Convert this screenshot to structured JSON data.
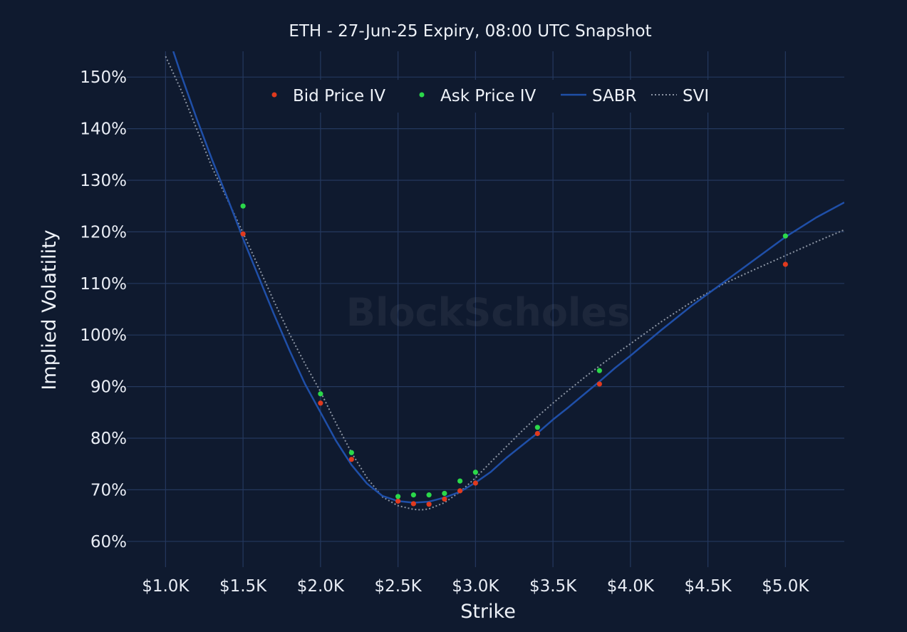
{
  "chart_data": {
    "type": "scatter",
    "title": "ETH - 27-Jun-25 Expiry, 08:00 UTC Snapshot",
    "xlabel": "Strike",
    "ylabel": "Implied Volatility",
    "watermark": "BlockScholes",
    "xlim": [
      750,
      5380
    ],
    "ylim": [
      55,
      155
    ],
    "xticks": [
      1000,
      1500,
      2000,
      2500,
      3000,
      3500,
      4000,
      4500,
      5000
    ],
    "xtick_labels": [
      "$1.0K",
      "$1.5K",
      "$2.0K",
      "$2.5K",
      "$3.0K",
      "$3.5K",
      "$4.0K",
      "$4.5K",
      "$5.0K"
    ],
    "yticks": [
      60,
      70,
      80,
      90,
      100,
      110,
      120,
      130,
      140,
      150
    ],
    "ytick_labels": [
      "60%",
      "70%",
      "80%",
      "90%",
      "100%",
      "110%",
      "120%",
      "130%",
      "140%",
      "150%"
    ],
    "grid": true,
    "legend_position": "top-center",
    "series": [
      {
        "name": "Bid Price IV",
        "kind": "markers",
        "color": "#e03a1e",
        "x": [
          1500,
          2000,
          2200,
          2500,
          2600,
          2700,
          2800,
          2900,
          3000,
          3400,
          3800,
          5000
        ],
        "y": [
          119.6,
          86.8,
          75.9,
          67.8,
          67.3,
          67.2,
          68.2,
          69.8,
          71.3,
          80.9,
          90.5,
          113.7
        ]
      },
      {
        "name": "Ask Price IV",
        "kind": "markers",
        "color": "#2bd84a",
        "x": [
          1500,
          2000,
          2200,
          2500,
          2600,
          2700,
          2800,
          2900,
          3000,
          3400,
          3800,
          5000
        ],
        "y": [
          125.0,
          88.6,
          77.2,
          68.7,
          69.0,
          69.0,
          69.3,
          71.7,
          73.4,
          82.1,
          93.1,
          119.2
        ]
      },
      {
        "name": "SABR",
        "kind": "line",
        "color": "#1f4fa8",
        "x": [
          1050,
          1100,
          1200,
          1300,
          1400,
          1500,
          1600,
          1700,
          1800,
          1900,
          2000,
          2100,
          2200,
          2300,
          2400,
          2500,
          2600,
          2700,
          2800,
          2900,
          3000,
          3100,
          3200,
          3300,
          3400,
          3500,
          3600,
          3700,
          3800,
          3900,
          4000,
          4200,
          4400,
          4600,
          4800,
          5000,
          5200,
          5380
        ],
        "y": [
          155,
          150.5,
          142.0,
          134.0,
          126.5,
          118.7,
          111.3,
          104.0,
          97.0,
          90.5,
          85.0,
          79.5,
          74.8,
          71.2,
          68.8,
          67.8,
          67.5,
          67.7,
          68.5,
          69.6,
          71.4,
          73.5,
          76.2,
          78.6,
          81.0,
          83.6,
          86.0,
          88.5,
          91.0,
          93.6,
          96.0,
          101.0,
          105.8,
          110.2,
          114.6,
          119.0,
          122.8,
          125.7
        ]
      },
      {
        "name": "SVI",
        "kind": "line",
        "dash": "dotted",
        "color": "#8c95a4",
        "x": [
          1000,
          1100,
          1200,
          1300,
          1400,
          1500,
          1600,
          1700,
          1800,
          1900,
          2000,
          2100,
          2200,
          2300,
          2400,
          2500,
          2600,
          2650,
          2700,
          2800,
          2900,
          3000,
          3100,
          3200,
          3300,
          3400,
          3500,
          3600,
          3700,
          3800,
          3900,
          4000,
          4200,
          4400,
          4600,
          4800,
          5000,
          5200,
          5380
        ],
        "y": [
          154.0,
          147.5,
          140.0,
          132.5,
          126.2,
          119.8,
          113.2,
          106.5,
          100.2,
          94.4,
          89.0,
          82.9,
          77.2,
          72.3,
          68.6,
          66.9,
          66.2,
          66.1,
          66.3,
          67.5,
          69.6,
          72.3,
          75.4,
          78.4,
          81.4,
          84.2,
          86.8,
          89.3,
          91.7,
          94.0,
          96.2,
          98.3,
          102.6,
          106.5,
          109.9,
          112.7,
          115.4,
          118.1,
          120.4
        ]
      }
    ]
  }
}
